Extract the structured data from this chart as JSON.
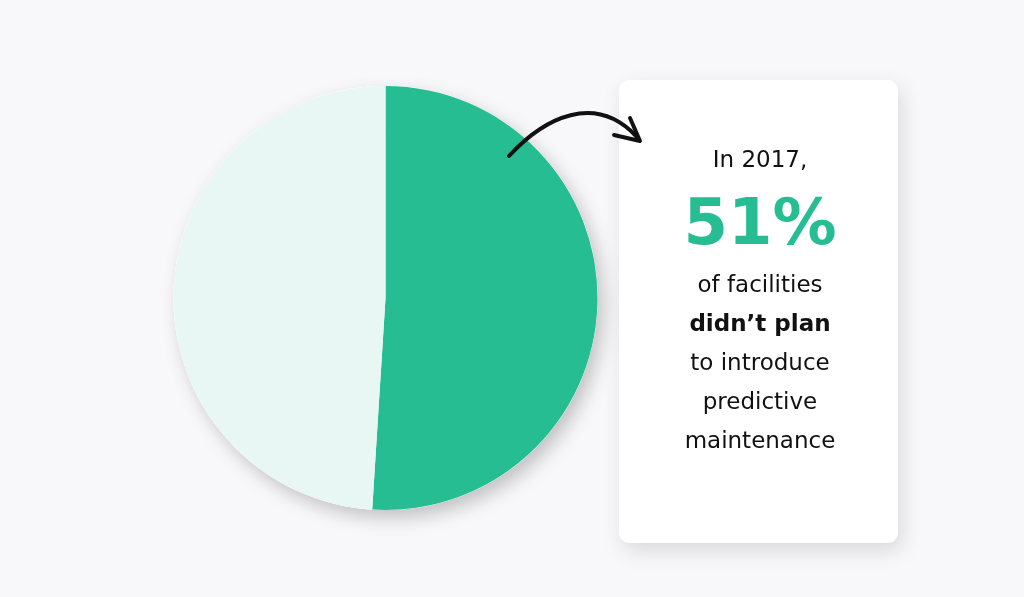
{
  "chart_data": {
    "type": "pie",
    "categories": [
      null,
      null
    ],
    "values": [
      51,
      49
    ],
    "colors": [
      "#27bd93",
      "#e8f7f3"
    ],
    "annotations": [
      "In 2017,",
      "51%",
      "of facilities",
      "didn’t plan",
      "to introduce",
      "predictive",
      "maintenance"
    ]
  }
}
